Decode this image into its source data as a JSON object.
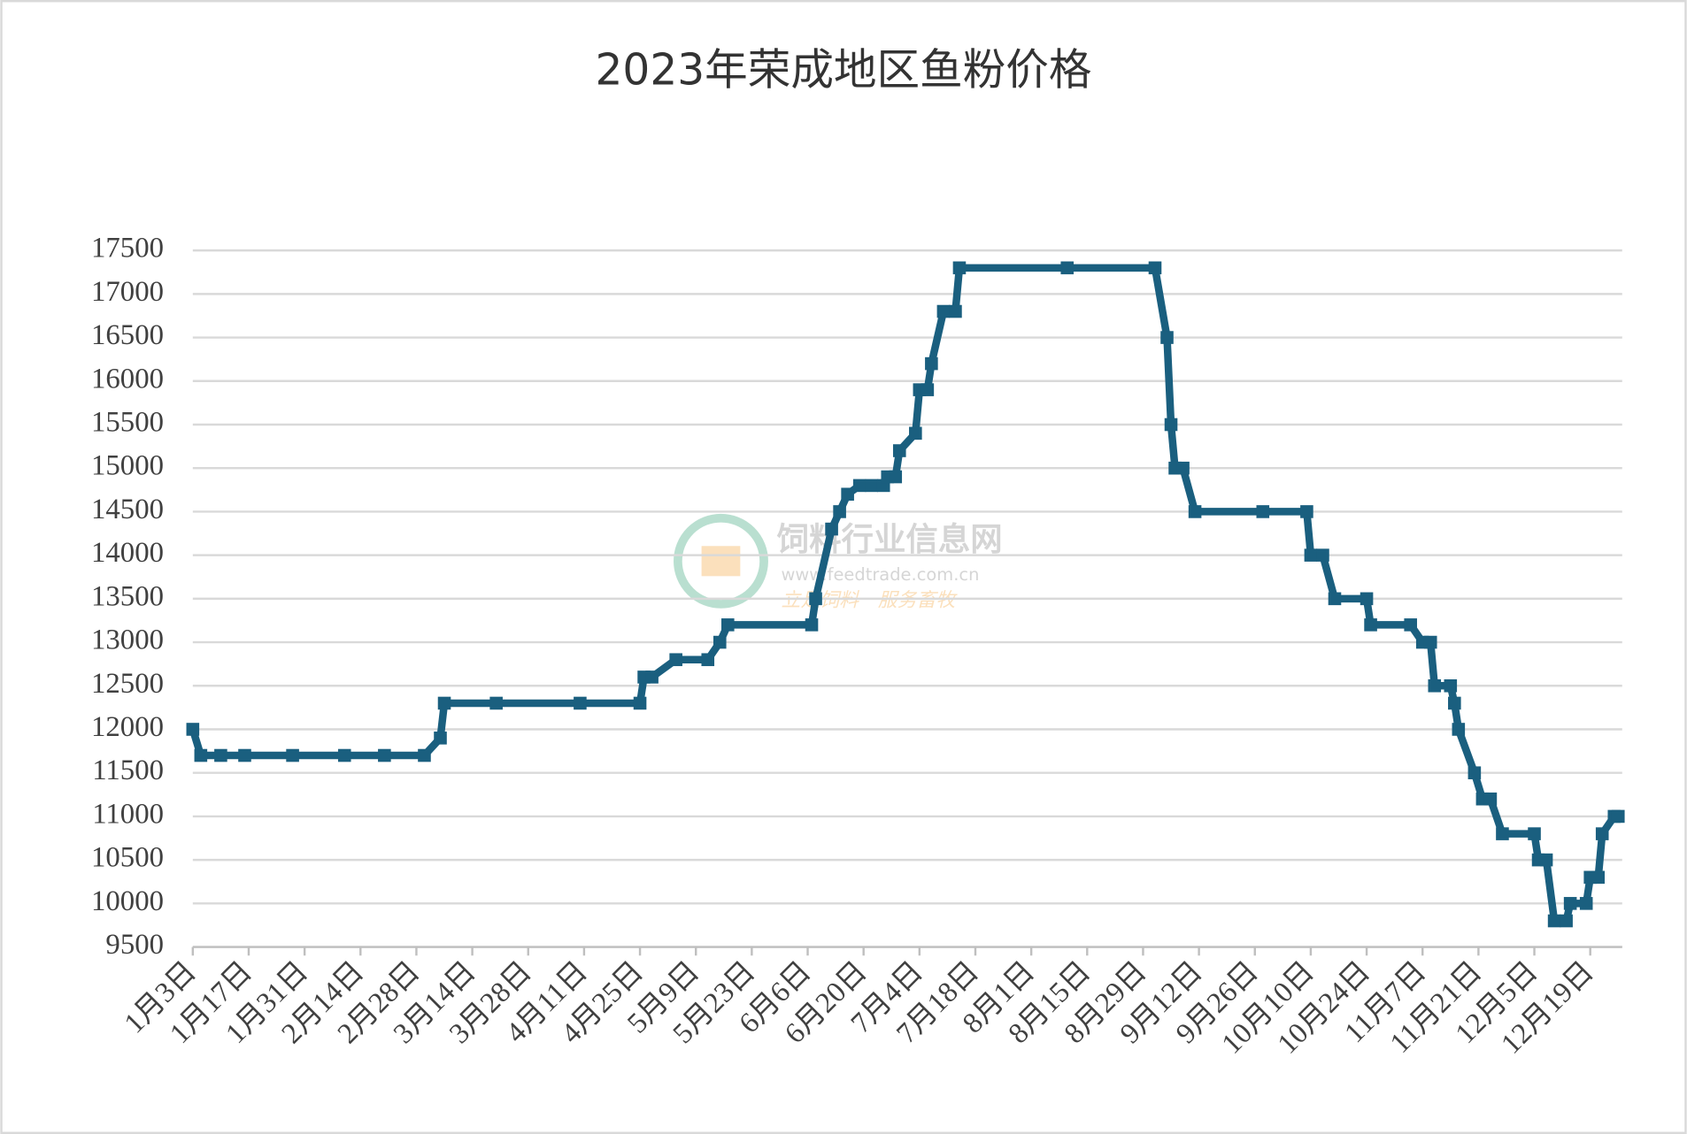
{
  "chart_data": {
    "type": "line",
    "title": "2023年荣成地区鱼粉价格",
    "watermark": {
      "name": "饲料行业信息网",
      "url": "www.feedtrade.com.cn",
      "slogan": "立足饲料　服务畜牧"
    },
    "x": [
      "1月3日",
      "1月5日",
      "1月10日",
      "1月16日",
      "1月28日",
      "2月10日",
      "2月20日",
      "3月2日",
      "3月6日",
      "3月7日",
      "3月20日",
      "4月10日",
      "4月25日",
      "4月26日",
      "4月28日",
      "5月4日",
      "5月12日",
      "5月15日",
      "5月17日",
      "6月7日",
      "6月8日",
      "6月12日",
      "6月14日",
      "6月16日",
      "6月19日",
      "6月22日",
      "6月25日",
      "6月26日",
      "6月28日",
      "6月29日",
      "7月3日",
      "7月4日",
      "7月6日",
      "7月7日",
      "7月10日",
      "7月13日",
      "7月14日",
      "8月10日",
      "9月1日",
      "9月4日",
      "9月5日",
      "9月6日",
      "9月8日",
      "9月11日",
      "9月28日",
      "10月9日",
      "10月10日",
      "10月13日",
      "10月16日",
      "10月24日",
      "10月25日",
      "11月4日",
      "11月7日",
      "11月9日",
      "11月10日",
      "11月14日",
      "11月15日",
      "11月16日",
      "11月20日",
      "11月22日",
      "11月24日",
      "11月27日",
      "12月5日",
      "12月6日",
      "12月8日",
      "12月10日",
      "12月13日",
      "12月14日",
      "12月18日",
      "12月19日",
      "12月21日",
      "12月22日",
      "12月25日",
      "12月26日"
    ],
    "series": [
      {
        "name": "鱼粉价格",
        "color": "#1a5f7f",
        "values": [
          12000,
          11700,
          11700,
          11700,
          11700,
          11700,
          11700,
          11700,
          11900,
          12300,
          12300,
          12300,
          12300,
          12600,
          12600,
          12800,
          12800,
          13000,
          13200,
          13200,
          13500,
          14300,
          14500,
          14700,
          14800,
          14800,
          14800,
          14900,
          14900,
          15200,
          15400,
          15900,
          15900,
          16200,
          16800,
          16800,
          17300,
          17300,
          17300,
          16500,
          15500,
          15000,
          15000,
          14500,
          14500,
          14500,
          14000,
          14000,
          13500,
          13500,
          13200,
          13200,
          13000,
          13000,
          12500,
          12500,
          12300,
          12000,
          11500,
          11200,
          11200,
          10800,
          10800,
          10500,
          10500,
          9800,
          9800,
          10000,
          10000,
          10300,
          10300,
          10800,
          11000,
          11000
        ]
      }
    ],
    "xlim": [
      "1月3日",
      "12月27日"
    ],
    "xticks": [
      "1月3日",
      "1月17日",
      "1月31日",
      "2月14日",
      "2月28日",
      "3月14日",
      "3月28日",
      "4月11日",
      "4月25日",
      "5月9日",
      "5月23日",
      "6月6日",
      "6月20日",
      "7月4日",
      "7月18日",
      "8月1日",
      "8月15日",
      "8月29日",
      "9月12日",
      "9月26日",
      "10月10日",
      "10月24日",
      "11月7日",
      "11月21日",
      "12月5日",
      "12月19日"
    ],
    "ylim": [
      9500,
      17500
    ],
    "yticks": [
      9500,
      10000,
      10500,
      11000,
      11500,
      12000,
      12500,
      13000,
      13500,
      14000,
      14500,
      15000,
      15500,
      16000,
      16500,
      17000,
      17500
    ],
    "grid": true
  }
}
